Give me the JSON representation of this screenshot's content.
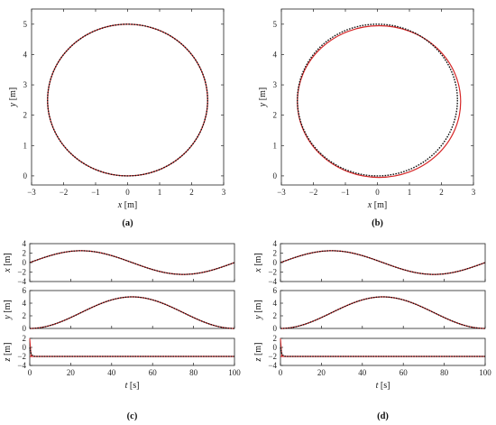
{
  "chart_data": [
    {
      "type": "line",
      "panel": "a",
      "caption": "(a)",
      "xlabel": "x",
      "xunit": "[m]",
      "ylabel": "y",
      "yunit": "[m]",
      "xlim": [
        -3,
        3
      ],
      "ylim": [
        -0.3,
        5.5
      ],
      "xticks": [
        "−3",
        "−2",
        "−1",
        "0",
        "1",
        "2",
        "3"
      ],
      "yticks": [
        "0",
        "1",
        "2",
        "3",
        "4",
        "5"
      ],
      "series": [
        {
          "style": "reference",
          "color": "#d62728",
          "shape": "ellipse",
          "center": [
            0,
            2.5
          ],
          "rx": 2.5,
          "ry": 2.5
        },
        {
          "style": "actual",
          "color": "#111111",
          "dashed": true,
          "shape": "ellipse",
          "center": [
            0,
            2.5
          ],
          "rx": 2.5,
          "ry": 2.5
        }
      ]
    },
    {
      "type": "line",
      "panel": "b",
      "caption": "(b)",
      "xlabel": "x",
      "xunit": "[m]",
      "ylabel": "y",
      "yunit": "[m]",
      "xlim": [
        -3,
        3
      ],
      "ylim": [
        -0.3,
        5.5
      ],
      "xticks": [
        "−3",
        "−2",
        "−1",
        "0",
        "1",
        "2",
        "3"
      ],
      "yticks": [
        "0",
        "1",
        "2",
        "3",
        "4",
        "5"
      ],
      "series": [
        {
          "style": "reference",
          "color": "#d62728",
          "shape": "ellipse",
          "center": [
            0.05,
            2.45
          ],
          "rx": 2.55,
          "ry": 2.5
        },
        {
          "style": "actual",
          "color": "#111111",
          "dashed": true,
          "shape": "ellipse",
          "center": [
            0,
            2.5
          ],
          "rx": 2.5,
          "ry": 2.5
        }
      ]
    },
    {
      "type": "line",
      "panel": "c",
      "caption": "(c)",
      "xlabel": "t",
      "xunit": "[s]",
      "xlim": [
        0,
        100
      ],
      "xticks": [
        "0",
        "20",
        "40",
        "60",
        "80",
        "100"
      ],
      "subplots": [
        {
          "ylabel": "x",
          "yunit": "[m]",
          "ylim": [
            -4,
            4
          ],
          "yticks": [
            "−4",
            "−2",
            "0",
            "2",
            "4"
          ],
          "func": "x",
          "amplitude": 2.5,
          "period": 100
        },
        {
          "ylabel": "y",
          "yunit": "[m]",
          "ylim": [
            0,
            6
          ],
          "yticks": [
            "0",
            "2",
            "4",
            "6"
          ],
          "func": "y",
          "amplitude": 2.5,
          "offset": 2.5,
          "period": 100
        },
        {
          "ylabel": "z",
          "yunit": "[m]",
          "ylim": [
            -4,
            2
          ],
          "yticks": [
            "2",
            "0",
            "−2",
            "−4"
          ],
          "func": "z",
          "value": -2,
          "start": 0
        }
      ]
    },
    {
      "type": "line",
      "panel": "d",
      "caption": "(d)",
      "xlabel": "t",
      "xunit": "[s]",
      "xlim": [
        0,
        100
      ],
      "xticks": [
        "0",
        "20",
        "40",
        "60",
        "80",
        "100"
      ],
      "subplots": [
        {
          "ylabel": "x",
          "yunit": "[m]",
          "ylim": [
            -4,
            4
          ],
          "yticks": [
            "−4",
            "−2",
            "0",
            "2",
            "4"
          ],
          "func": "x",
          "amplitude": 2.5,
          "period": 100
        },
        {
          "ylabel": "y",
          "yunit": "[m]",
          "ylim": [
            0,
            6
          ],
          "yticks": [
            "0",
            "2",
            "4",
            "6"
          ],
          "func": "y",
          "amplitude": 2.5,
          "offset": 2.5,
          "period": 100
        },
        {
          "ylabel": "z",
          "yunit": "[m]",
          "ylim": [
            -4,
            2
          ],
          "yticks": [
            "2",
            "0",
            "−2",
            "−4"
          ],
          "func": "z",
          "value": -2,
          "start": 0
        }
      ]
    }
  ]
}
